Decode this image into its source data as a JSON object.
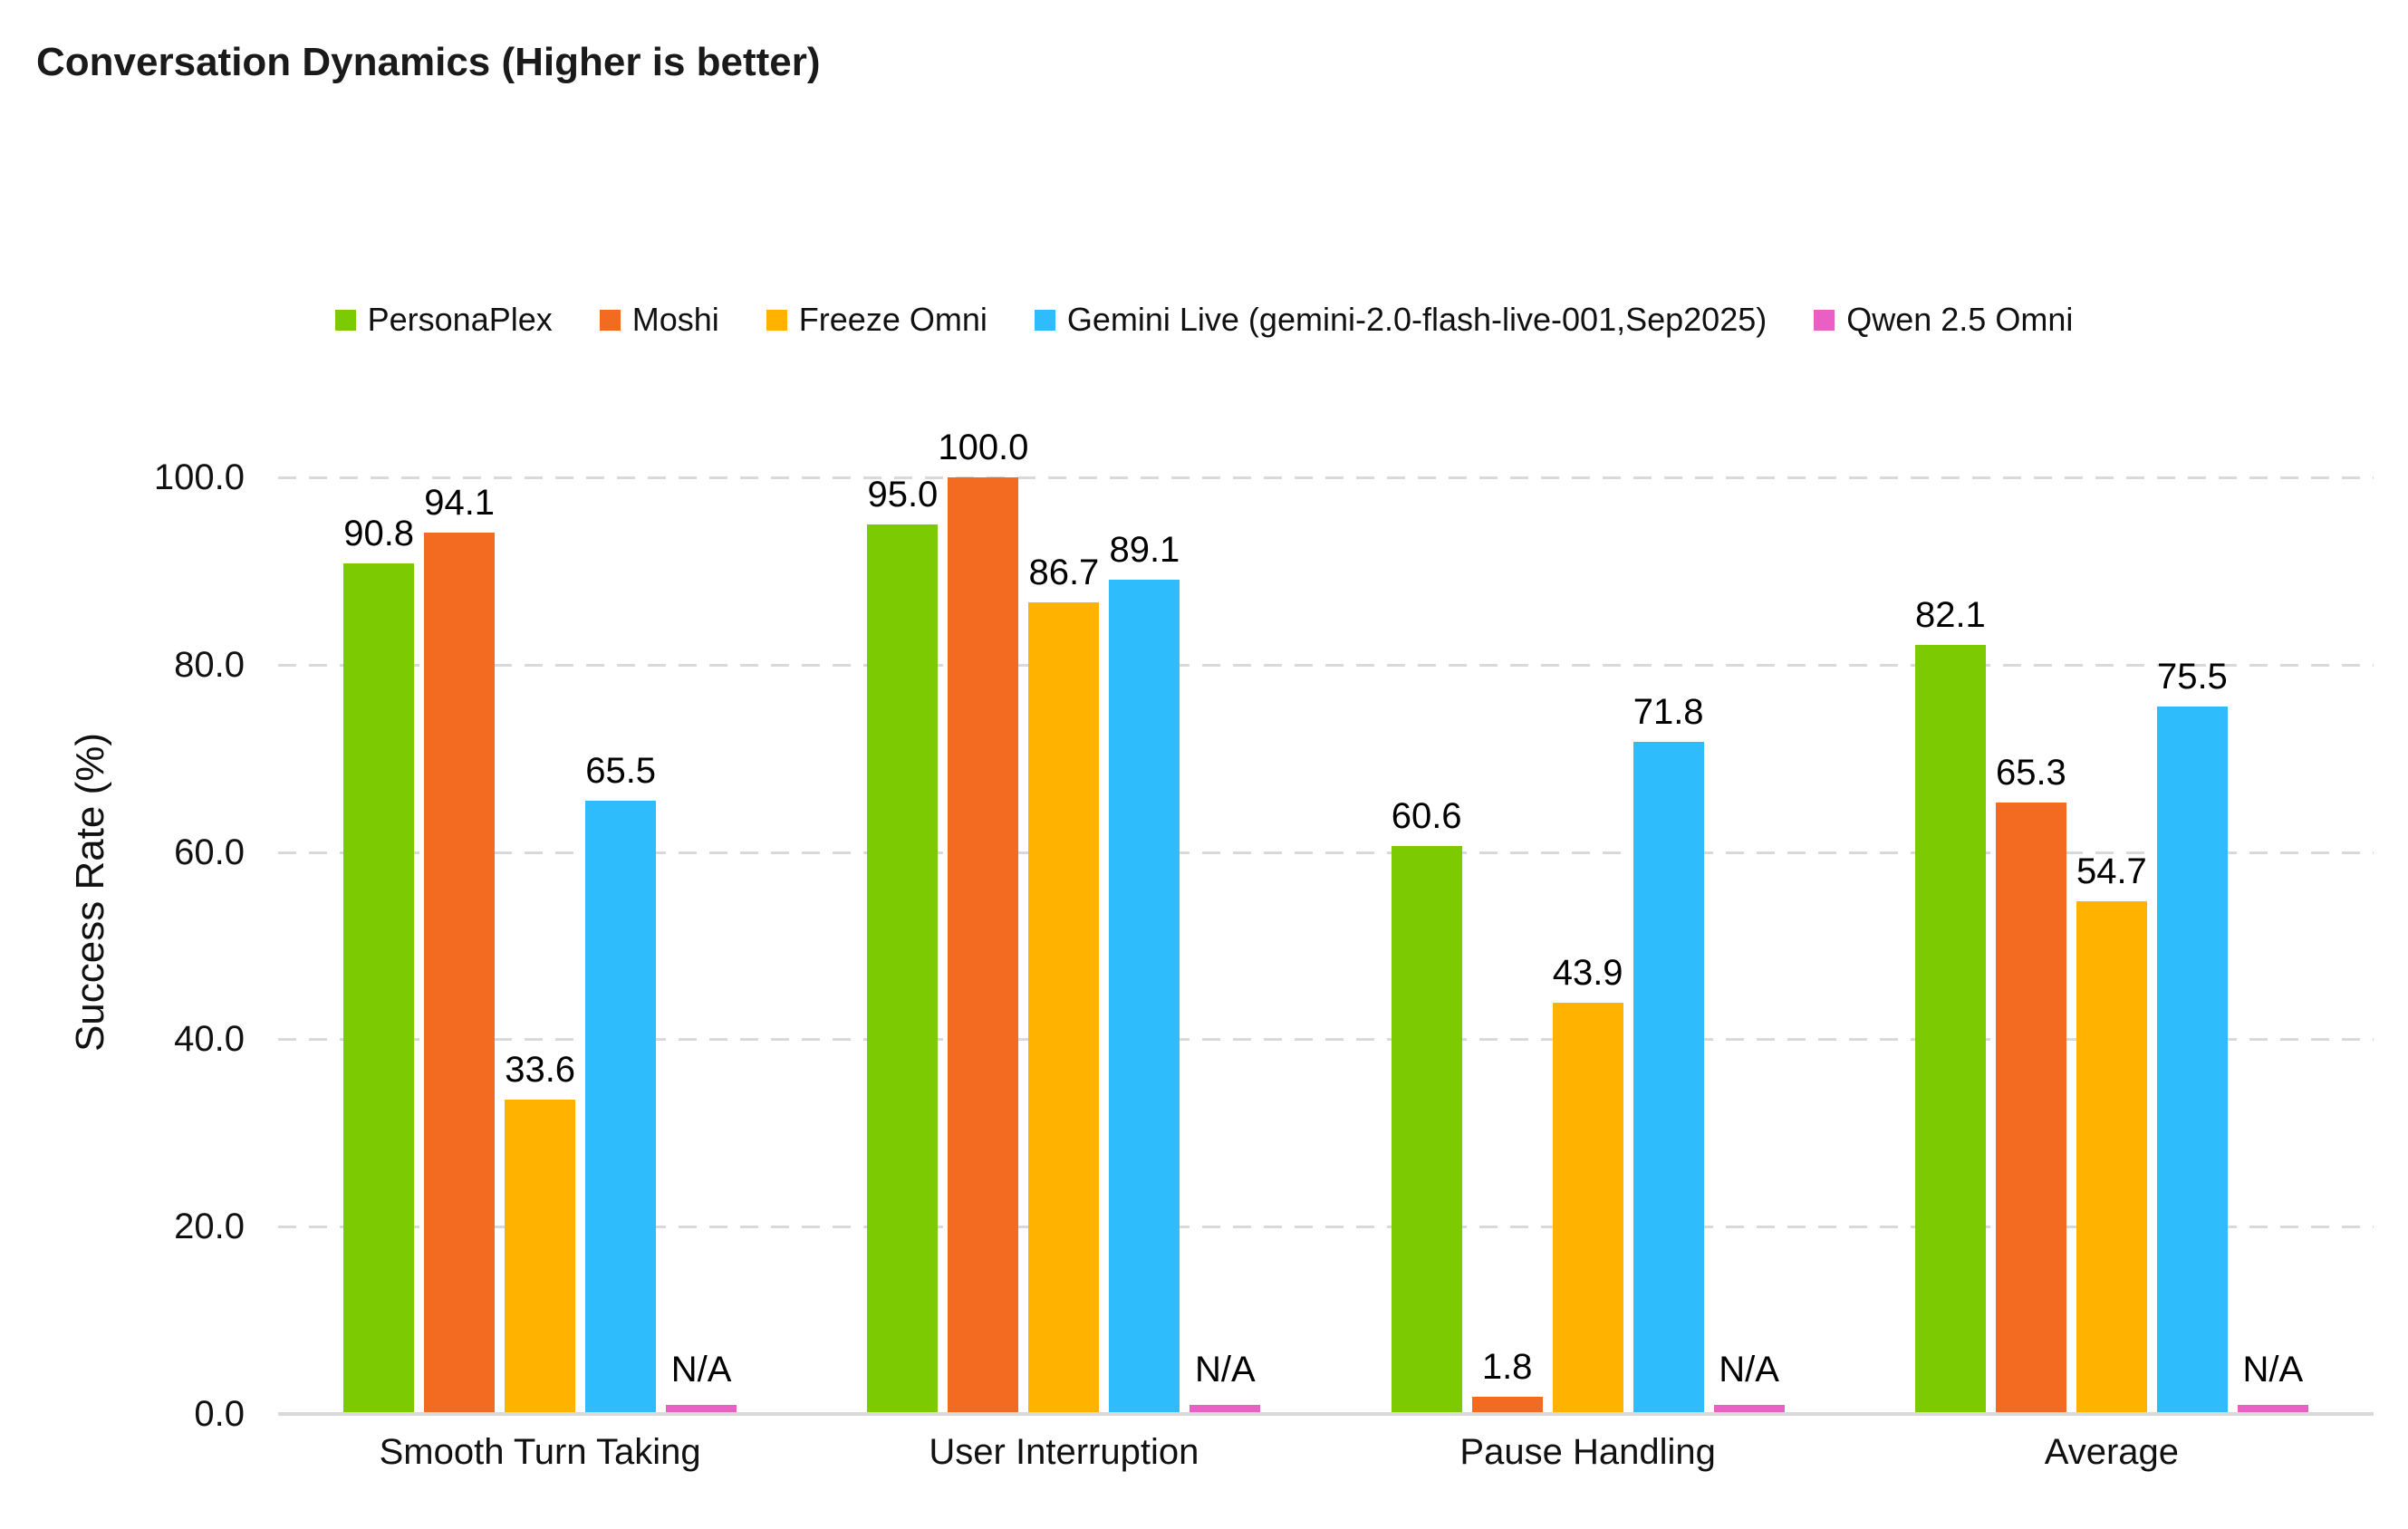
{
  "title": "Conversation Dynamics (Higher is better)",
  "colors": {
    "grid": "#d9d9d9",
    "axis_baseline": "#d9d9d9",
    "text": "#111111"
  },
  "chart_data": {
    "type": "bar",
    "title": "Conversation Dynamics (Higher is better)",
    "xlabel": "",
    "ylabel": "Success Rate (%)",
    "ylim": [
      0,
      100
    ],
    "yticks": [
      "100.0",
      "80.0",
      "60.0",
      "40.0",
      "20.0",
      "0.0"
    ],
    "grid": "horizontal-dashed",
    "legend_position": "top",
    "categories": [
      "Smooth Turn Taking",
      "User Interruption",
      "Pause Handling",
      "Average"
    ],
    "na_label": "N/A",
    "na_bar_height_value": 1.0,
    "series": [
      {
        "name": "PersonaPlex",
        "color": "#7CCB02",
        "values": [
          90.8,
          95.0,
          60.6,
          82.1
        ],
        "labels": [
          "90.8",
          "95.0",
          "60.6",
          "82.1"
        ]
      },
      {
        "name": "Moshi",
        "color": "#F26B21",
        "values": [
          94.1,
          100.0,
          1.8,
          65.3
        ],
        "labels": [
          "94.1",
          "100.0",
          "1.8",
          "65.3"
        ]
      },
      {
        "name": "Freeze Omni",
        "color": "#FFB200",
        "values": [
          33.6,
          86.7,
          43.9,
          54.7
        ],
        "labels": [
          "33.6",
          "86.7",
          "43.9",
          "54.7"
        ]
      },
      {
        "name": "Gemini Live (gemini-2.0-flash-live-001,Sep2025)",
        "color": "#2FBCFD",
        "values": [
          65.5,
          89.1,
          71.8,
          75.5
        ],
        "labels": [
          "65.5",
          "89.1",
          "71.8",
          "75.5"
        ]
      },
      {
        "name": "Qwen 2.5 Omni",
        "color": "#E95FC3",
        "values": [
          null,
          null,
          null,
          null
        ],
        "labels": [
          "N/A",
          "N/A",
          "N/A",
          "N/A"
        ]
      }
    ]
  }
}
